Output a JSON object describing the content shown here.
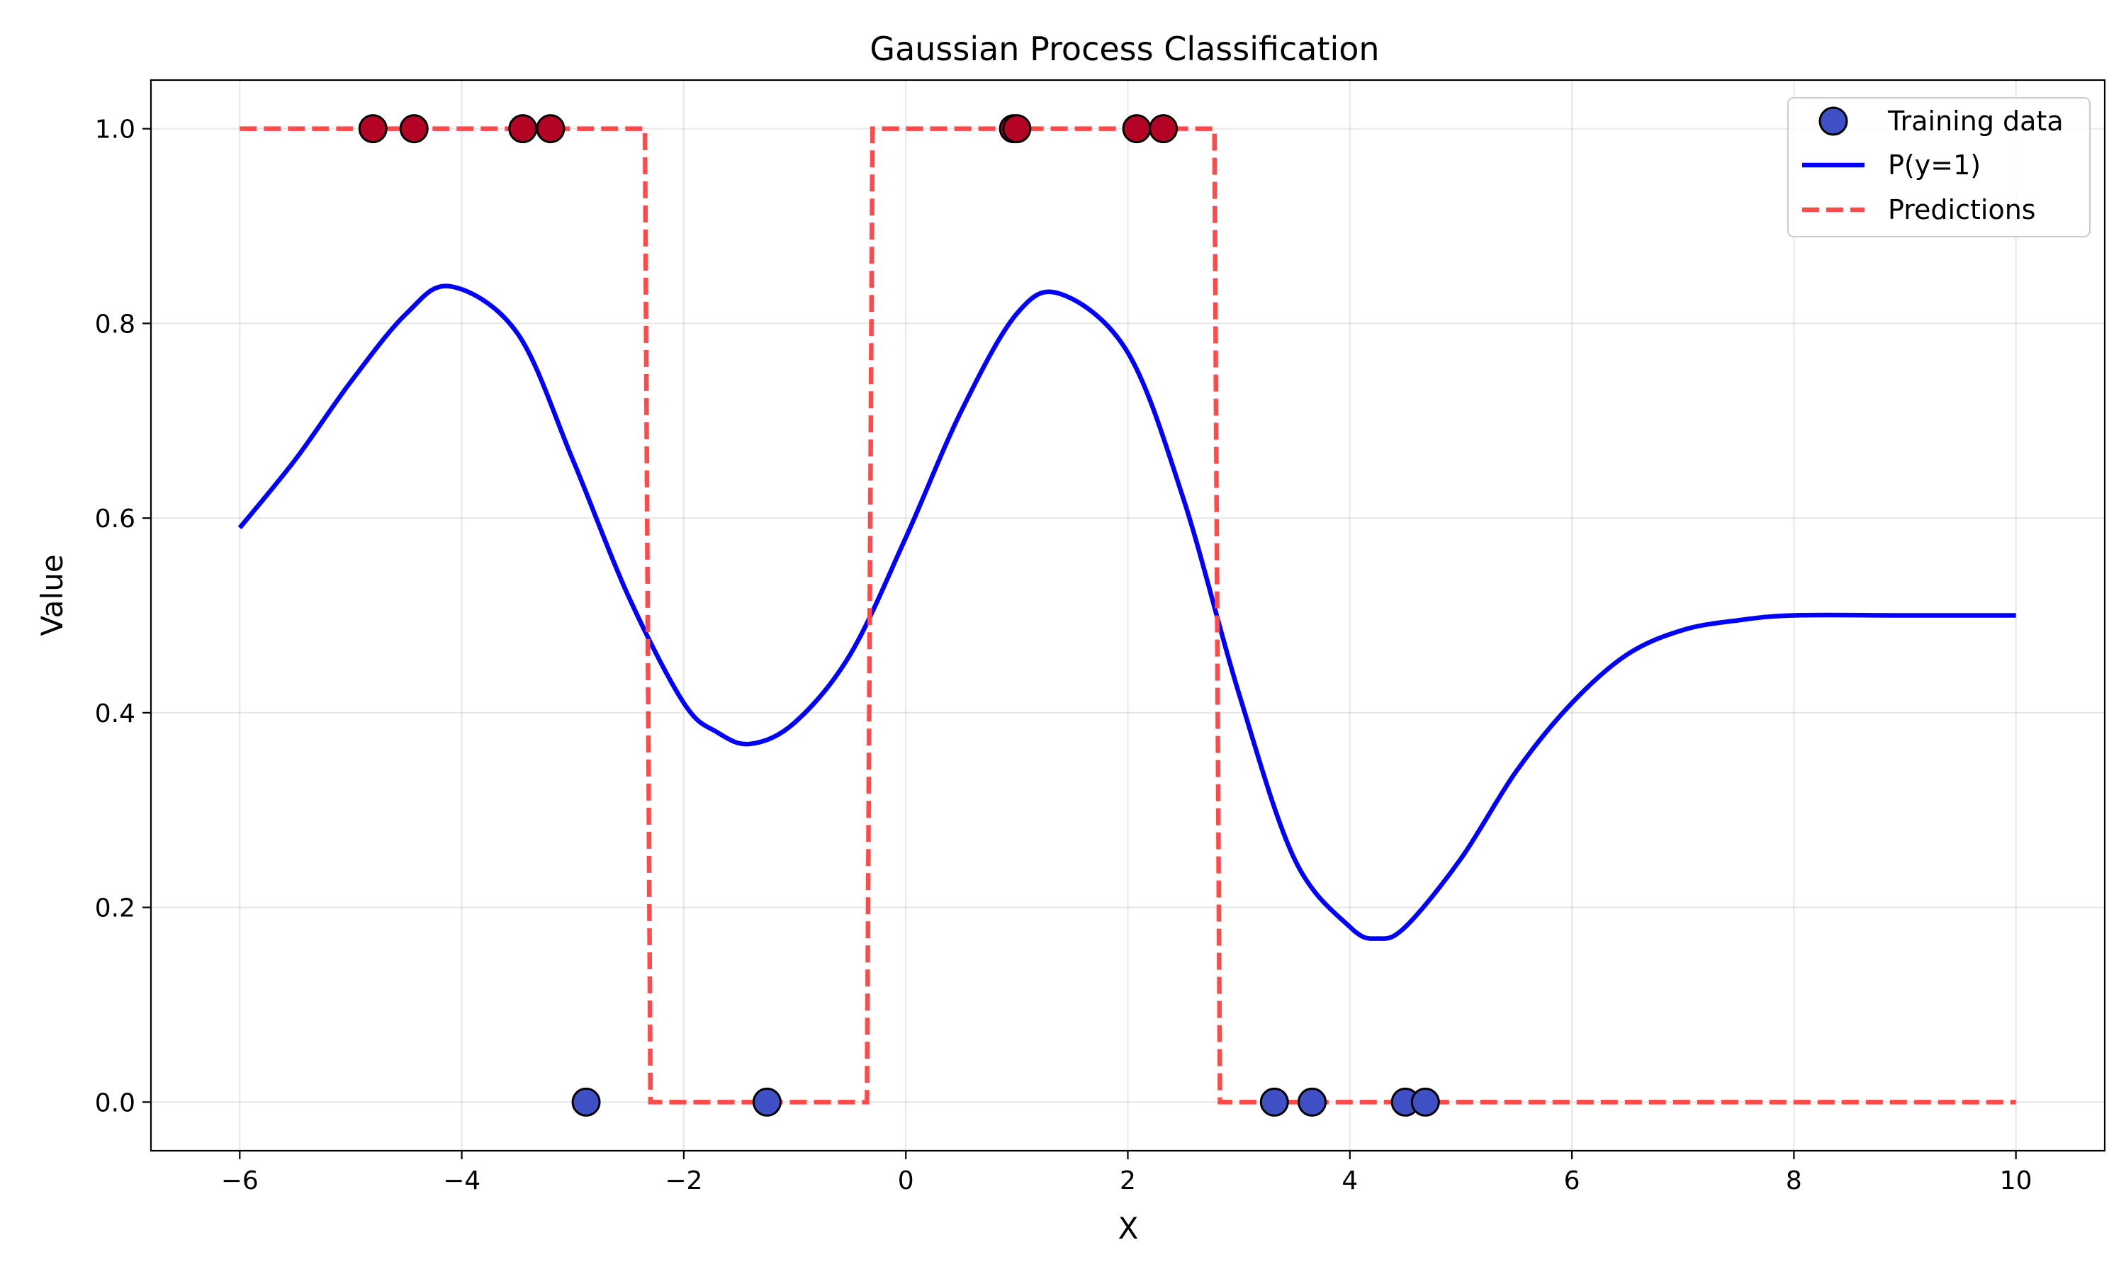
{
  "chart_data": {
    "type": "line",
    "title": "Gaussian Process Classification",
    "xlabel": "X",
    "ylabel": "Value",
    "xlim": [
      -6.8,
      10.8
    ],
    "ylim": [
      -0.05,
      1.05
    ],
    "grid": true,
    "legend_position": "top-right",
    "x_ticks": [
      {
        "value": -6,
        "label": "−6"
      },
      {
        "value": -4,
        "label": "−4"
      },
      {
        "value": -2,
        "label": "−2"
      },
      {
        "value": 0,
        "label": "0"
      },
      {
        "value": 2,
        "label": "2"
      },
      {
        "value": 4,
        "label": "4"
      },
      {
        "value": 6,
        "label": "6"
      },
      {
        "value": 8,
        "label": "8"
      },
      {
        "value": 10,
        "label": "10"
      }
    ],
    "y_ticks": [
      {
        "value": 0.0,
        "label": "0.0"
      },
      {
        "value": 0.2,
        "label": "0.2"
      },
      {
        "value": 0.4,
        "label": "0.4"
      },
      {
        "value": 0.6,
        "label": "0.6"
      },
      {
        "value": 0.8,
        "label": "0.8"
      },
      {
        "value": 1.0,
        "label": "1.0"
      }
    ],
    "series": [
      {
        "name": "P(y=1)",
        "kind": "line",
        "color": "#0000ff",
        "x": [
          -6.0,
          -5.5,
          -5.0,
          -4.5,
          -4.1,
          -3.5,
          -3.0,
          -2.5,
          -2.0,
          -1.7,
          -1.4,
          -1.0,
          -0.5,
          0.0,
          0.5,
          1.0,
          1.4,
          2.0,
          2.5,
          3.0,
          3.5,
          4.0,
          4.25,
          4.5,
          5.0,
          5.5,
          6.0,
          6.5,
          7.0,
          7.5,
          8.0,
          9.0,
          10.0
        ],
        "y": [
          0.59,
          0.66,
          0.74,
          0.81,
          0.838,
          0.79,
          0.66,
          0.52,
          0.41,
          0.38,
          0.368,
          0.39,
          0.46,
          0.58,
          0.71,
          0.81,
          0.83,
          0.77,
          0.62,
          0.42,
          0.25,
          0.18,
          0.168,
          0.18,
          0.25,
          0.34,
          0.41,
          0.46,
          0.485,
          0.495,
          0.5,
          0.5,
          0.5
        ]
      },
      {
        "name": "Predictions",
        "kind": "dashed-line",
        "color": "#ff4a4a",
        "x": [
          -6.0,
          -2.35,
          -2.3,
          -0.35,
          -0.3,
          2.78,
          2.83,
          10.0
        ],
        "y": [
          1,
          1,
          0,
          0,
          1,
          1,
          0,
          0
        ]
      },
      {
        "name": "Training data",
        "kind": "scatter",
        "legend_color": "#3f4fc4",
        "points": [
          {
            "x": -4.8,
            "y": 1,
            "color": "#b40426"
          },
          {
            "x": -4.43,
            "y": 1,
            "color": "#b40426"
          },
          {
            "x": -3.45,
            "y": 1,
            "color": "#b40426"
          },
          {
            "x": -3.2,
            "y": 1,
            "color": "#b40426"
          },
          {
            "x": 0.97,
            "y": 1,
            "color": "#b40426"
          },
          {
            "x": 1.0,
            "y": 1,
            "color": "#b40426"
          },
          {
            "x": 2.08,
            "y": 1,
            "color": "#b40426"
          },
          {
            "x": 2.32,
            "y": 1,
            "color": "#b40426"
          },
          {
            "x": -2.88,
            "y": 0,
            "color": "#3f4fc4"
          },
          {
            "x": -1.25,
            "y": 0,
            "color": "#3f4fc4"
          },
          {
            "x": 3.32,
            "y": 0,
            "color": "#3f4fc4"
          },
          {
            "x": 3.66,
            "y": 0,
            "color": "#3f4fc4"
          },
          {
            "x": 4.5,
            "y": 0,
            "color": "#3f4fc4"
          },
          {
            "x": 4.68,
            "y": 0,
            "color": "#3f4fc4"
          }
        ]
      }
    ],
    "legend": [
      {
        "label": "Training data",
        "marker": "circle",
        "color": "#3f4fc4"
      },
      {
        "label": "P(y=1)",
        "marker": "line",
        "color": "#0000ff"
      },
      {
        "label": "Predictions",
        "marker": "dashed-line",
        "color": "#ff4a4a"
      }
    ]
  }
}
